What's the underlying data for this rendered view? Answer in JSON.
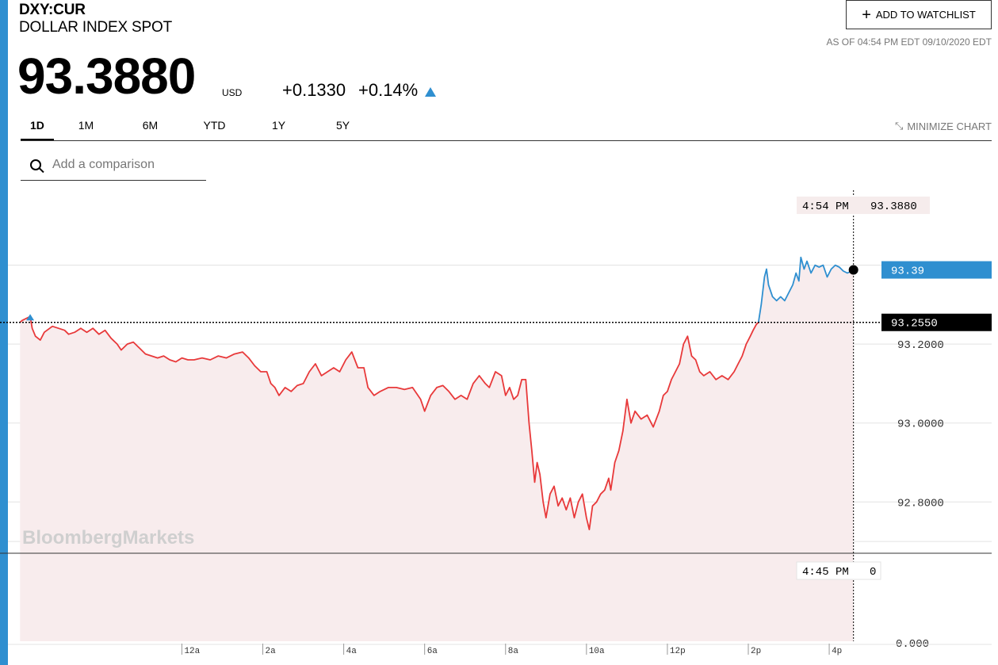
{
  "header": {
    "ticker": "DXY:CUR",
    "name": "DOLLAR INDEX SPOT",
    "price": "93.3880",
    "currency": "USD",
    "change": "+0.1330",
    "change_pct": "+0.14%",
    "watchlist_label": "ADD TO WATCHLIST",
    "as_of": "AS OF 04:54 PM EDT 09/10/2020 EDT"
  },
  "tabs": [
    {
      "label": "1D",
      "active": true
    },
    {
      "label": "1M"
    },
    {
      "label": "6M"
    },
    {
      "label": "YTD"
    },
    {
      "label": "1Y"
    },
    {
      "label": "5Y"
    }
  ],
  "minimize_label": "MINIMIZE CHART",
  "search": {
    "placeholder": "Add a comparison"
  },
  "colors": {
    "down": "#e8393a",
    "up": "#2f8fd0",
    "fill": "#f8eced",
    "accent": "#2f8fd0"
  },
  "chart_data": {
    "type": "line",
    "watermark": "BloombergMarkets",
    "previous_close": 93.255,
    "previous_close_label": "93.2550",
    "last_value_label": "93.39",
    "hover_time": "4:54 PM",
    "hover_value": "93.3880",
    "volume_time": "4:45 PM",
    "volume_value": "0",
    "ylim": [
      92.67,
      93.61
    ],
    "y_ticks": [
      93.2,
      93.0,
      92.8
    ],
    "y_tick_labels": [
      "93.2000",
      "93.0000",
      "92.8000"
    ],
    "volume_axis_label": "0.000",
    "x_ticks": [
      {
        "h": 0,
        "label": "12a"
      },
      {
        "h": 2,
        "label": "2a"
      },
      {
        "h": 4,
        "label": "4a"
      },
      {
        "h": 6,
        "label": "6a"
      },
      {
        "h": 8,
        "label": "8a"
      },
      {
        "h": 10,
        "label": "10a"
      },
      {
        "h": 12,
        "label": "12p"
      },
      {
        "h": 14,
        "label": "2p"
      },
      {
        "h": 16,
        "label": "4p"
      }
    ],
    "xlim": [
      -4.3,
      16.9
    ],
    "series": [
      {
        "values": [
          [
            -4.0,
            93.255
          ],
          [
            -3.95,
            93.26
          ],
          [
            -3.85,
            93.265
          ],
          [
            -3.75,
            93.27
          ],
          [
            -3.7,
            93.24
          ],
          [
            -3.62,
            93.22
          ],
          [
            -3.5,
            93.21
          ],
          [
            -3.4,
            93.23
          ],
          [
            -3.2,
            93.245
          ],
          [
            -3.05,
            93.24
          ],
          [
            -2.9,
            93.235
          ],
          [
            -2.8,
            93.225
          ],
          [
            -2.65,
            93.23
          ],
          [
            -2.5,
            93.24
          ],
          [
            -2.35,
            93.23
          ],
          [
            -2.2,
            93.24
          ],
          [
            -2.05,
            93.225
          ],
          [
            -1.9,
            93.235
          ],
          [
            -1.75,
            93.215
          ],
          [
            -1.6,
            93.2
          ],
          [
            -1.5,
            93.185
          ],
          [
            -1.35,
            93.2
          ],
          [
            -1.2,
            93.205
          ],
          [
            -1.05,
            93.19
          ],
          [
            -0.9,
            93.175
          ],
          [
            -0.75,
            93.17
          ],
          [
            -0.6,
            93.165
          ],
          [
            -0.45,
            93.17
          ],
          [
            -0.3,
            93.16
          ],
          [
            -0.15,
            93.155
          ],
          [
            0.0,
            93.165
          ],
          [
            0.15,
            93.16
          ],
          [
            0.3,
            93.16
          ],
          [
            0.5,
            93.165
          ],
          [
            0.7,
            93.16
          ],
          [
            0.9,
            93.17
          ],
          [
            1.1,
            93.165
          ],
          [
            1.3,
            93.175
          ],
          [
            1.5,
            93.18
          ],
          [
            1.65,
            93.165
          ],
          [
            1.8,
            93.145
          ],
          [
            1.95,
            93.13
          ],
          [
            2.1,
            93.13
          ],
          [
            2.2,
            93.1
          ],
          [
            2.3,
            93.09
          ],
          [
            2.4,
            93.07
          ],
          [
            2.55,
            93.09
          ],
          [
            2.7,
            93.08
          ],
          [
            2.85,
            93.095
          ],
          [
            3.0,
            93.1
          ],
          [
            3.15,
            93.13
          ],
          [
            3.3,
            93.15
          ],
          [
            3.45,
            93.12
          ],
          [
            3.6,
            93.13
          ],
          [
            3.75,
            93.14
          ],
          [
            3.9,
            93.13
          ],
          [
            4.05,
            93.16
          ],
          [
            4.2,
            93.18
          ],
          [
            4.35,
            93.14
          ],
          [
            4.5,
            93.14
          ],
          [
            4.6,
            93.09
          ],
          [
            4.75,
            93.07
          ],
          [
            4.9,
            93.08
          ],
          [
            5.1,
            93.09
          ],
          [
            5.3,
            93.09
          ],
          [
            5.5,
            93.085
          ],
          [
            5.7,
            93.09
          ],
          [
            5.9,
            93.06
          ],
          [
            6.0,
            93.03
          ],
          [
            6.15,
            93.07
          ],
          [
            6.3,
            93.09
          ],
          [
            6.45,
            93.095
          ],
          [
            6.6,
            93.08
          ],
          [
            6.75,
            93.06
          ],
          [
            6.9,
            93.07
          ],
          [
            7.05,
            93.06
          ],
          [
            7.2,
            93.1
          ],
          [
            7.35,
            93.12
          ],
          [
            7.5,
            93.1
          ],
          [
            7.6,
            93.09
          ],
          [
            7.75,
            93.13
          ],
          [
            7.9,
            93.12
          ],
          [
            8.0,
            93.07
          ],
          [
            8.1,
            93.09
          ],
          [
            8.2,
            93.06
          ],
          [
            8.3,
            93.07
          ],
          [
            8.4,
            93.11
          ],
          [
            8.5,
            93.11
          ],
          [
            8.58,
            93.0
          ],
          [
            8.65,
            92.93
          ],
          [
            8.72,
            92.85
          ],
          [
            8.78,
            92.9
          ],
          [
            8.85,
            92.87
          ],
          [
            8.93,
            92.8
          ],
          [
            9.0,
            92.76
          ],
          [
            9.1,
            92.82
          ],
          [
            9.2,
            92.84
          ],
          [
            9.3,
            92.79
          ],
          [
            9.4,
            92.81
          ],
          [
            9.5,
            92.78
          ],
          [
            9.6,
            92.81
          ],
          [
            9.7,
            92.76
          ],
          [
            9.8,
            92.8
          ],
          [
            9.9,
            92.82
          ],
          [
            10.0,
            92.76
          ],
          [
            10.07,
            92.73
          ],
          [
            10.15,
            92.79
          ],
          [
            10.25,
            92.8
          ],
          [
            10.35,
            92.82
          ],
          [
            10.45,
            92.83
          ],
          [
            10.55,
            92.86
          ],
          [
            10.6,
            92.83
          ],
          [
            10.7,
            92.9
          ],
          [
            10.8,
            92.93
          ],
          [
            10.9,
            92.98
          ],
          [
            11.0,
            93.06
          ],
          [
            11.1,
            93.0
          ],
          [
            11.2,
            93.03
          ],
          [
            11.35,
            93.01
          ],
          [
            11.5,
            93.02
          ],
          [
            11.65,
            92.99
          ],
          [
            11.8,
            93.03
          ],
          [
            11.9,
            93.07
          ],
          [
            12.0,
            93.08
          ],
          [
            12.1,
            93.11
          ],
          [
            12.2,
            93.13
          ],
          [
            12.3,
            93.15
          ],
          [
            12.4,
            93.2
          ],
          [
            12.5,
            93.22
          ],
          [
            12.6,
            93.17
          ],
          [
            12.7,
            93.16
          ],
          [
            12.8,
            93.13
          ],
          [
            12.9,
            93.12
          ],
          [
            13.05,
            93.13
          ],
          [
            13.2,
            93.11
          ],
          [
            13.35,
            93.12
          ],
          [
            13.5,
            93.11
          ],
          [
            13.65,
            93.13
          ],
          [
            13.75,
            93.15
          ],
          [
            13.85,
            93.17
          ],
          [
            13.95,
            93.2
          ],
          [
            14.05,
            93.22
          ],
          [
            14.12,
            93.235
          ],
          [
            14.2,
            93.25
          ],
          [
            14.25,
            93.255
          ]
        ]
      },
      {
        "values": [
          [
            14.25,
            93.255
          ],
          [
            14.32,
            93.3
          ],
          [
            14.4,
            93.37
          ],
          [
            14.45,
            93.39
          ],
          [
            14.5,
            93.35
          ],
          [
            14.6,
            93.32
          ],
          [
            14.7,
            93.31
          ],
          [
            14.8,
            93.32
          ],
          [
            14.9,
            93.31
          ],
          [
            15.0,
            93.33
          ],
          [
            15.1,
            93.35
          ],
          [
            15.18,
            93.38
          ],
          [
            15.25,
            93.36
          ],
          [
            15.3,
            93.42
          ],
          [
            15.38,
            93.39
          ],
          [
            15.45,
            93.41
          ],
          [
            15.55,
            93.38
          ],
          [
            15.65,
            93.4
          ],
          [
            15.75,
            93.395
          ],
          [
            15.85,
            93.4
          ],
          [
            15.95,
            93.37
          ],
          [
            16.05,
            93.39
          ],
          [
            16.15,
            93.4
          ],
          [
            16.25,
            93.395
          ],
          [
            16.35,
            93.385
          ],
          [
            16.45,
            93.38
          ],
          [
            16.55,
            93.385
          ],
          [
            16.6,
            93.388
          ]
        ]
      }
    ]
  }
}
